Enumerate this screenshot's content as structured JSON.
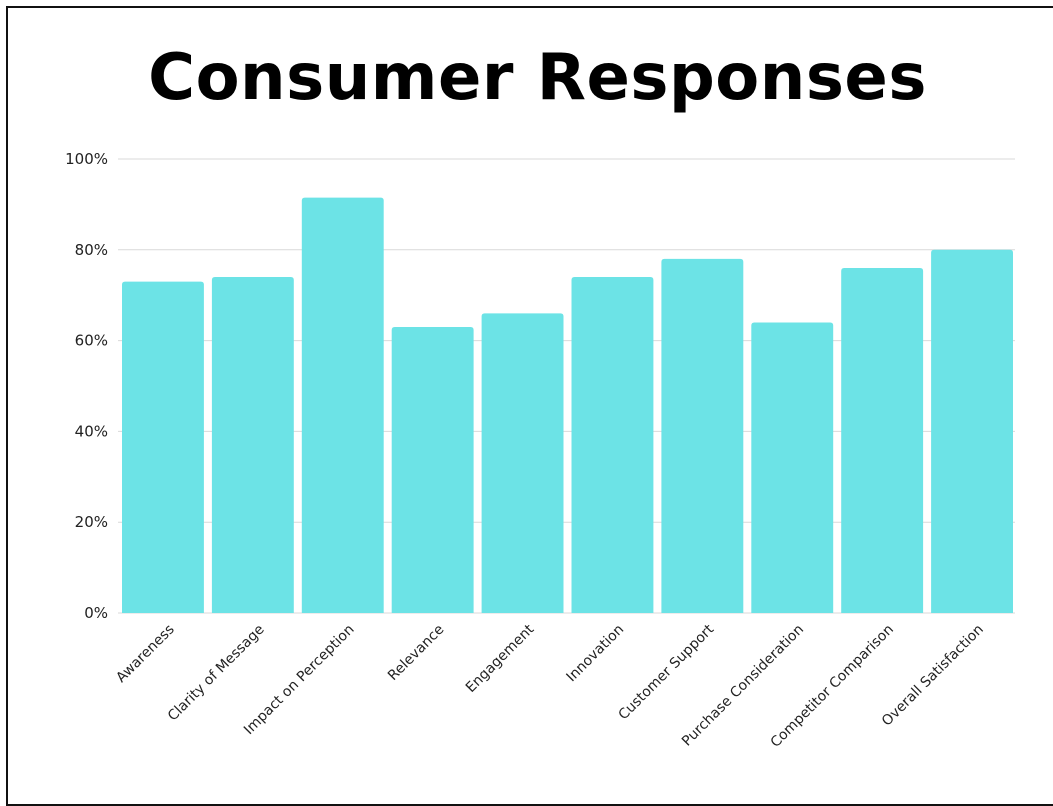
{
  "chart_data": {
    "type": "bar",
    "title": "Consumer Responses",
    "categories": [
      "Awareness",
      "Clarity of Message",
      "Impact on Perception",
      "Relevance",
      "Engagement",
      "Innovation",
      "Customer Support",
      "Purchase Consideration",
      "Competitor Comparison",
      "Overall Satisfaction"
    ],
    "values": [
      73,
      74,
      91.5,
      63,
      66,
      74,
      78,
      64,
      76,
      80
    ],
    "ylim": [
      0,
      100
    ],
    "yticks": [
      "0%",
      "20%",
      "40%",
      "60%",
      "80%",
      "100%"
    ],
    "ytick_values": [
      0,
      20,
      40,
      60,
      80,
      100
    ],
    "grid": true,
    "bar_color": "#6ce3e6",
    "grid_color": "#d9d9d9",
    "xlabel": "",
    "ylabel": ""
  }
}
